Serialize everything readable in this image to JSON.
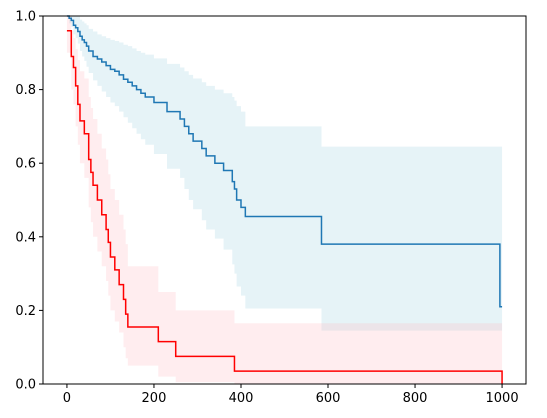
{
  "chart_data": {
    "type": "line",
    "step": true,
    "title": "",
    "xlabel": "",
    "ylabel": "",
    "xlim": [
      -55,
      1055
    ],
    "ylim": [
      0,
      1
    ],
    "xticks": [
      0,
      200,
      400,
      600,
      800,
      1000
    ],
    "yticks": [
      0.0,
      0.2,
      0.4,
      0.6,
      0.8,
      1.0
    ],
    "grid": false,
    "legend": "none",
    "series": [
      {
        "color": "#1f77b4",
        "band_color": "#add8e6",
        "band_opacity": 0.3,
        "x": [
          0,
          5,
          10,
          15,
          20,
          25,
          30,
          35,
          40,
          45,
          50,
          60,
          70,
          80,
          90,
          100,
          110,
          120,
          130,
          140,
          150,
          160,
          170,
          180,
          200,
          210,
          230,
          260,
          270,
          280,
          290,
          310,
          320,
          340,
          360,
          380,
          385,
          390,
          400,
          410,
          430,
          585,
          600,
          995,
          1000
        ],
        "y": [
          1.0,
          0.994,
          0.988,
          0.975,
          0.968,
          0.958,
          0.945,
          0.935,
          0.928,
          0.918,
          0.905,
          0.89,
          0.883,
          0.875,
          0.865,
          0.855,
          0.85,
          0.84,
          0.828,
          0.82,
          0.81,
          0.8,
          0.79,
          0.78,
          0.765,
          0.765,
          0.74,
          0.72,
          0.7,
          0.68,
          0.66,
          0.64,
          0.62,
          0.6,
          0.58,
          0.55,
          0.53,
          0.5,
          0.48,
          0.455,
          0.455,
          0.38,
          0.38,
          0.21,
          0.21
        ],
        "lower": [
          1.0,
          0.98,
          0.97,
          0.95,
          0.94,
          0.925,
          0.905,
          0.89,
          0.878,
          0.862,
          0.845,
          0.825,
          0.81,
          0.795,
          0.78,
          0.765,
          0.755,
          0.74,
          0.725,
          0.71,
          0.695,
          0.68,
          0.665,
          0.65,
          0.625,
          0.625,
          0.585,
          0.56,
          0.53,
          0.5,
          0.475,
          0.445,
          0.42,
          0.395,
          0.365,
          0.325,
          0.3,
          0.265,
          0.24,
          0.205,
          0.205,
          0.145,
          0.145,
          0.145,
          0.145
        ],
        "upper": [
          1.0,
          1.0,
          1.0,
          1.0,
          1.0,
          1.0,
          0.99,
          0.985,
          0.98,
          0.975,
          0.965,
          0.958,
          0.95,
          0.945,
          0.94,
          0.935,
          0.932,
          0.928,
          0.922,
          0.918,
          0.912,
          0.905,
          0.9,
          0.895,
          0.885,
          0.885,
          0.87,
          0.86,
          0.85,
          0.84,
          0.83,
          0.82,
          0.81,
          0.8,
          0.79,
          0.78,
          0.77,
          0.755,
          0.74,
          0.7,
          0.7,
          0.645,
          0.645,
          0.645,
          0.645
        ]
      },
      {
        "color": "#ff0000",
        "band_color": "#ffb6c1",
        "band_opacity": 0.25,
        "x": [
          0,
          10,
          15,
          20,
          25,
          30,
          40,
          50,
          55,
          60,
          70,
          80,
          90,
          95,
          100,
          105,
          110,
          120,
          130,
          135,
          140,
          145,
          150,
          210,
          250,
          385,
          995,
          1000
        ],
        "y": [
          0.96,
          0.89,
          0.86,
          0.81,
          0.76,
          0.715,
          0.68,
          0.61,
          0.575,
          0.54,
          0.5,
          0.46,
          0.42,
          0.385,
          0.345,
          0.345,
          0.31,
          0.27,
          0.23,
          0.19,
          0.155,
          0.155,
          0.155,
          0.115,
          0.075,
          0.035,
          0.035,
          0.0
        ],
        "lower": [
          0.9,
          0.8,
          0.76,
          0.7,
          0.65,
          0.6,
          0.56,
          0.48,
          0.44,
          0.4,
          0.36,
          0.32,
          0.28,
          0.24,
          0.2,
          0.2,
          0.17,
          0.14,
          0.1,
          0.07,
          0.05,
          0.05,
          0.05,
          0.02,
          0.005,
          0.0,
          0.0,
          0.0
        ],
        "upper": [
          1.0,
          0.96,
          0.94,
          0.91,
          0.88,
          0.85,
          0.83,
          0.78,
          0.75,
          0.72,
          0.68,
          0.64,
          0.61,
          0.57,
          0.53,
          0.53,
          0.5,
          0.46,
          0.42,
          0.38,
          0.32,
          0.32,
          0.32,
          0.25,
          0.2,
          0.165,
          0.165,
          0.165
        ]
      }
    ]
  }
}
